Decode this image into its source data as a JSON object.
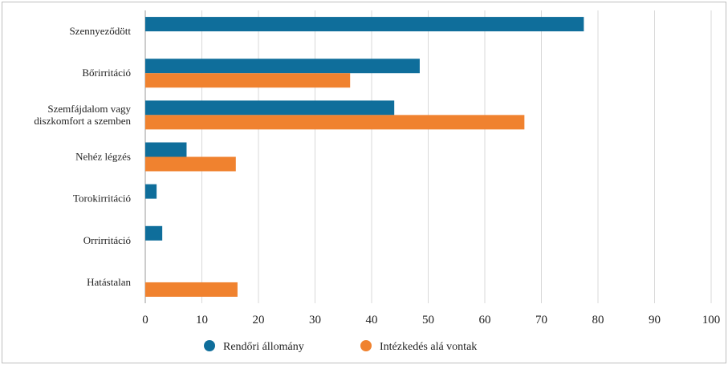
{
  "chart_data": {
    "type": "bar",
    "orientation": "horizontal",
    "categories": [
      "Szennyeződött",
      "Bőrirritáció",
      "Szemfájdalom vagy diszkomfort a szemben",
      "Nehéz légzés",
      "Torokirritáció",
      "Orrirritáció",
      "Hatástalan"
    ],
    "category_lines": [
      [
        "Szennyeződött"
      ],
      [
        "Bőrirritáció"
      ],
      [
        "Szemfájdalom vagy",
        "diszkomfort a szemben"
      ],
      [
        "Nehéz légzés"
      ],
      [
        "Torokirritáció"
      ],
      [
        "Orrirritáció"
      ],
      [
        "Hatástalan"
      ]
    ],
    "series": [
      {
        "name": "Rendőri állomány",
        "color": "#0f6e9b",
        "values": [
          77.5,
          48.5,
          44,
          7.3,
          2,
          3,
          null
        ]
      },
      {
        "name": "Intézkedés alá vontak",
        "color": "#f0822f",
        "values": [
          null,
          36.2,
          67,
          16,
          null,
          null,
          16.3
        ]
      }
    ],
    "xlim": [
      0,
      100
    ],
    "xticks": [
      0,
      10,
      20,
      30,
      40,
      50,
      60,
      70,
      80,
      90,
      100
    ],
    "grid": true,
    "legend": "bottom",
    "title": "",
    "xlabel": "",
    "ylabel": ""
  }
}
